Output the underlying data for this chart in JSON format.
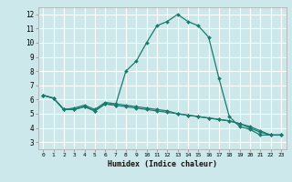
{
  "xlabel": "Humidex (Indice chaleur)",
  "background_color": "#cde8ea",
  "grid_color": "#ffffff",
  "line_color": "#1a7a6e",
  "xlim": [
    -0.5,
    23.5
  ],
  "ylim": [
    2.5,
    12.5
  ],
  "xticks": [
    0,
    1,
    2,
    3,
    4,
    5,
    6,
    7,
    8,
    9,
    10,
    11,
    12,
    13,
    14,
    15,
    16,
    17,
    18,
    19,
    20,
    21,
    22,
    23
  ],
  "yticks": [
    3,
    4,
    5,
    6,
    7,
    8,
    9,
    10,
    11,
    12
  ],
  "series": [
    {
      "x": [
        0,
        1,
        2,
        3,
        4,
        5,
        6,
        7,
        8,
        9,
        10,
        11,
        12,
        13,
        14,
        15,
        16,
        17,
        18,
        19,
        20,
        21,
        22,
        23
      ],
      "y": [
        6.3,
        6.1,
        5.3,
        5.3,
        5.5,
        5.2,
        5.7,
        5.6,
        8.0,
        8.7,
        10.0,
        11.2,
        11.5,
        12.0,
        11.5,
        11.2,
        10.4,
        7.5,
        4.8,
        4.1,
        3.9,
        3.5,
        3.5,
        3.5
      ]
    },
    {
      "x": [
        0,
        1,
        2,
        3,
        4,
        5,
        6,
        7,
        8,
        9,
        10,
        11,
        12,
        13,
        14,
        15,
        16,
        17,
        18,
        19,
        20,
        21,
        22,
        23
      ],
      "y": [
        6.3,
        6.1,
        5.3,
        5.3,
        5.5,
        5.2,
        5.7,
        5.6,
        5.5,
        5.4,
        5.3,
        5.2,
        5.1,
        5.0,
        4.9,
        4.8,
        4.7,
        4.6,
        4.5,
        4.3,
        4.1,
        3.8,
        3.5,
        3.5
      ]
    },
    {
      "x": [
        0,
        1,
        2,
        3,
        4,
        5,
        6,
        7,
        8,
        9,
        10,
        11,
        12,
        13,
        14,
        15,
        16,
        17,
        18,
        19,
        20,
        21,
        22,
        23
      ],
      "y": [
        6.3,
        6.1,
        5.3,
        5.4,
        5.6,
        5.3,
        5.8,
        5.7,
        5.6,
        5.5,
        5.4,
        5.3,
        5.2,
        5.0,
        4.9,
        4.8,
        4.7,
        4.6,
        4.5,
        4.3,
        4.0,
        3.7,
        3.5,
        3.5
      ]
    }
  ]
}
